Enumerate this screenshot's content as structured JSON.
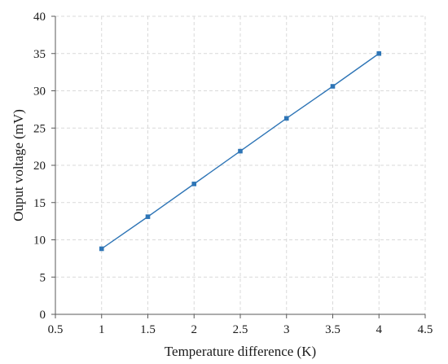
{
  "chart_data": {
    "type": "line",
    "title": "",
    "xlabel": "Temperature difference (K)",
    "ylabel": "Ouput voltage (mV)",
    "xlim": [
      0.5,
      4.5
    ],
    "ylim": [
      0,
      40
    ],
    "xticks": [
      "0.5",
      "1",
      "1.5",
      "2",
      "2.5",
      "3",
      "3.5",
      "4",
      "4.5"
    ],
    "yticks": [
      "0",
      "5",
      "10",
      "15",
      "20",
      "25",
      "30",
      "35",
      "40"
    ],
    "grid": true,
    "legend": "none",
    "series": [
      {
        "color": "#2e75b6",
        "marker": "square",
        "x": [
          1,
          1.5,
          2,
          2.5,
          3,
          3.5,
          4
        ],
        "y": [
          8.8,
          13.1,
          17.5,
          21.9,
          26.3,
          30.6,
          35.0
        ]
      }
    ]
  }
}
